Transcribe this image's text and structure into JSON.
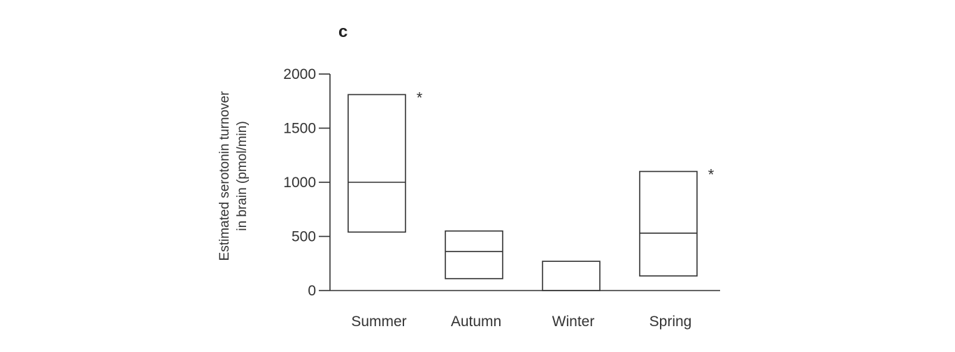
{
  "panel_label": "c",
  "chart_data": {
    "type": "box",
    "title": "",
    "ylabel_lines": [
      "Estimated serotonin turnover",
      "in brain (pmol/min)"
    ],
    "xlabel": "",
    "ylim": [
      0,
      2000
    ],
    "yticks": [
      0,
      500,
      1000,
      1500,
      2000
    ],
    "yticks_labels": [
      "0",
      "500",
      "1000",
      "1500",
      "2000"
    ],
    "categories": [
      "Summer",
      "Autumn",
      "Winter",
      "Spring"
    ],
    "boxes": [
      {
        "category": "Summer",
        "low": 540,
        "median": 1000,
        "high": 1810,
        "annotation": "*"
      },
      {
        "category": "Autumn",
        "low": 110,
        "median": 360,
        "high": 550,
        "annotation": ""
      },
      {
        "category": "Winter",
        "low": 0,
        "median": null,
        "high": 270,
        "annotation": ""
      },
      {
        "category": "Spring",
        "low": 135,
        "median": 530,
        "high": 1100,
        "annotation": "*"
      }
    ],
    "grid": false,
    "legend": "none"
  }
}
